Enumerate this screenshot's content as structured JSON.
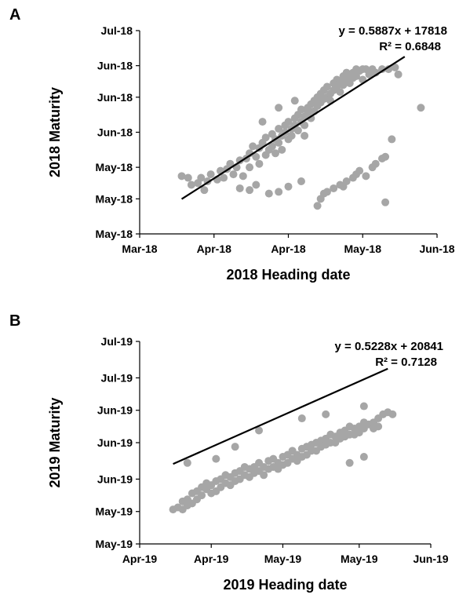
{
  "panels": [
    {
      "letter": "A"
    },
    {
      "letter": "B"
    }
  ],
  "chart_data": [
    {
      "type": "scatter",
      "panel": "A",
      "xlabel": "2018 Heading date",
      "ylabel": "2018 Maturity",
      "xlim": [
        43160,
        43252
      ],
      "ylim": [
        43224,
        43282
      ],
      "x_tick_values": [
        43160,
        43183,
        43206,
        43229,
        43252
      ],
      "x_tick_labels": [
        "Mar-18",
        "Apr-18",
        "Apr-18",
        "May-18",
        "Jun-18"
      ],
      "y_tick_values": [
        43224,
        43234,
        43243,
        43253,
        43263,
        43272,
        43282
      ],
      "y_tick_labels": [
        "May-18",
        "May-18",
        "May-18",
        "Jun-18",
        "Jun-18",
        "Jun-18",
        "Jul-18"
      ],
      "equation": "y = 0.5887x + 17818",
      "r2": "R² = 0.6848",
      "trend_x": [
        43173,
        43242
      ],
      "point_color": "#a6a6a6",
      "line_color": "#000000",
      "series": [
        {
          "values": [
            [
              43173,
              43240.5
            ],
            [
              43175,
              43240
            ],
            [
              43176,
              43238
            ],
            [
              43178,
              43238.5
            ],
            [
              43179,
              43240
            ],
            [
              43180,
              43236.5
            ],
            [
              43181,
              43239
            ],
            [
              43182,
              43241
            ],
            [
              43184,
              43239.5
            ],
            [
              43185,
              43242
            ],
            [
              43186,
              43240
            ],
            [
              43187,
              43242.5
            ],
            [
              43188,
              43244
            ],
            [
              43189,
              43241
            ],
            [
              43190,
              43243
            ],
            [
              43191,
              43245
            ],
            [
              43192,
              43240.5
            ],
            [
              43193,
              43245.5
            ],
            [
              43194,
              43247
            ],
            [
              43194,
              43243
            ],
            [
              43195,
              43249
            ],
            [
              43196,
              43246
            ],
            [
              43197,
              43244
            ],
            [
              43197,
              43248.5
            ],
            [
              43198,
              43250
            ],
            [
              43199,
              43246.5
            ],
            [
              43199,
              43251.5
            ],
            [
              43200,
              43248
            ],
            [
              43201,
              43252.5
            ],
            [
              43201,
              43249
            ],
            [
              43202,
              43247
            ],
            [
              43202,
              43251
            ],
            [
              43203,
              43254
            ],
            [
              43203,
              43250
            ],
            [
              43204,
              43252
            ],
            [
              43204,
              43248
            ],
            [
              43205,
              43255
            ],
            [
              43205,
              43253
            ],
            [
              43206,
              43251
            ],
            [
              43206,
              43256
            ],
            [
              43207,
              43254
            ],
            [
              43207,
              43252
            ],
            [
              43208,
              43257
            ],
            [
              43208,
              43255
            ],
            [
              43209,
              43253.5
            ],
            [
              43209,
              43258
            ],
            [
              43210,
              43256
            ],
            [
              43210,
              43259.5
            ],
            [
              43211,
              43257.5
            ],
            [
              43211,
              43255
            ],
            [
              43212,
              43260
            ],
            [
              43212,
              43258.5
            ],
            [
              43213,
              43261
            ],
            [
              43213,
              43257
            ],
            [
              43214,
              43262
            ],
            [
              43214,
              43259
            ],
            [
              43215,
              43263
            ],
            [
              43215,
              43260.5
            ],
            [
              43216,
              43261.5
            ],
            [
              43216,
              43264
            ],
            [
              43217,
              43262.5
            ],
            [
              43217,
              43265
            ],
            [
              43218,
              43263
            ],
            [
              43218,
              43266
            ],
            [
              43219,
              43264
            ],
            [
              43219,
              43262
            ],
            [
              43220,
              43267
            ],
            [
              43220,
              43265
            ],
            [
              43221,
              43266
            ],
            [
              43221,
              43268
            ],
            [
              43222,
              43264.5
            ],
            [
              43222,
              43267.5
            ],
            [
              43223,
              43269
            ],
            [
              43223,
              43266.5
            ],
            [
              43224,
              43268
            ],
            [
              43224,
              43270
            ],
            [
              43225,
              43267
            ],
            [
              43225,
              43269.5
            ],
            [
              43226,
              43270
            ],
            [
              43226,
              43268.5
            ],
            [
              43227,
              43271
            ],
            [
              43227,
              43269
            ],
            [
              43228,
              43270.5
            ],
            [
              43229,
              43271
            ],
            [
              43229,
              43268
            ],
            [
              43230,
              43271
            ],
            [
              43231,
              43269.5
            ],
            [
              43232,
              43271
            ],
            [
              43233,
              43270
            ],
            [
              43235,
              43271
            ],
            [
              43237,
              43271
            ],
            [
              43239,
              43271.5
            ],
            [
              43240,
              43269.5
            ],
            [
              43247,
              43260
            ],
            [
              43191,
              43237
            ],
            [
              43194,
              43236.5
            ],
            [
              43196,
              43238
            ],
            [
              43200,
              43235.5
            ],
            [
              43203,
              43236
            ],
            [
              43206,
              43237.5
            ],
            [
              43210,
              43239
            ],
            [
              43198,
              43256
            ],
            [
              43203,
              43260
            ],
            [
              43208,
              43262
            ],
            [
              43211,
              43252
            ],
            [
              43215,
              43232
            ],
            [
              43216,
              43234
            ],
            [
              43217,
              43235.5
            ],
            [
              43218,
              43236
            ],
            [
              43220,
              43237
            ],
            [
              43222,
              43238
            ],
            [
              43223,
              43237.5
            ],
            [
              43224,
              43239
            ],
            [
              43226,
              43240
            ],
            [
              43227,
              43241
            ],
            [
              43228,
              43242
            ],
            [
              43230,
              43240.5
            ],
            [
              43232,
              43243
            ],
            [
              43233,
              43244
            ],
            [
              43235,
              43245.5
            ],
            [
              43236,
              43246
            ],
            [
              43238,
              43251
            ],
            [
              43236,
              43233
            ]
          ]
        }
      ]
    },
    {
      "type": "scatter",
      "panel": "B",
      "xlabel": "2019 Heading date",
      "ylabel": "2019 Maturity",
      "xlim": [
        43556,
        43617
      ],
      "ylim": [
        43596,
        43646
      ],
      "x_tick_values": [
        43556,
        43571,
        43586,
        43602,
        43617
      ],
      "x_tick_labels": [
        "Apr-19",
        "Apr-19",
        "May-19",
        "May-19",
        "Jun-19"
      ],
      "y_tick_values": [
        43596,
        43604,
        43612,
        43621,
        43629,
        43637,
        43646
      ],
      "y_tick_labels": [
        "May-19",
        "May-19",
        "Jun-19",
        "Jun-19",
        "Jun-19",
        "Jul-19",
        "Jul-19"
      ],
      "equation": "y = 0.5228x + 20841",
      "r2": "R² = 0.7128",
      "trend_x": [
        43563,
        43608
      ],
      "point_color": "#a6a6a6",
      "line_color": "#000000",
      "series": [
        {
          "values": [
            [
              43563,
              43604.5
            ],
            [
              43564,
              43605
            ],
            [
              43565,
              43606.5
            ],
            [
              43565,
              43604.5
            ],
            [
              43566,
              43607
            ],
            [
              43566,
              43605.5
            ],
            [
              43567,
              43608.5
            ],
            [
              43567,
              43606
            ],
            [
              43568,
              43609
            ],
            [
              43568,
              43607
            ],
            [
              43569,
              43610
            ],
            [
              43569,
              43608
            ],
            [
              43570,
              43609.5
            ],
            [
              43570,
              43611
            ],
            [
              43571,
              43610.5
            ],
            [
              43571,
              43608.5
            ],
            [
              43572,
              43611.5
            ],
            [
              43572,
              43609
            ],
            [
              43573,
              43612
            ],
            [
              43573,
              43610
            ],
            [
              43574,
              43613
            ],
            [
              43574,
              43611
            ],
            [
              43575,
              43612.5
            ],
            [
              43575,
              43610.5
            ],
            [
              43576,
              43613.5
            ],
            [
              43576,
              43611.5
            ],
            [
              43577,
              43614
            ],
            [
              43577,
              43612
            ],
            [
              43578,
              43613
            ],
            [
              43578,
              43615
            ],
            [
              43579,
              43614.5
            ],
            [
              43579,
              43612.5
            ],
            [
              43580,
              43615
            ],
            [
              43580,
              43613.5
            ],
            [
              43581,
              43616
            ],
            [
              43581,
              43614
            ],
            [
              43582,
              43615
            ],
            [
              43582,
              43613
            ],
            [
              43583,
              43616.5
            ],
            [
              43583,
              43614.5
            ],
            [
              43584,
              43617
            ],
            [
              43584,
              43615
            ],
            [
              43585,
              43616
            ],
            [
              43585,
              43614.5
            ],
            [
              43586,
              43617.5
            ],
            [
              43586,
              43615.5
            ],
            [
              43587,
              43618
            ],
            [
              43587,
              43616
            ],
            [
              43588,
              43617
            ],
            [
              43588,
              43619
            ],
            [
              43589,
              43618
            ],
            [
              43589,
              43616.5
            ],
            [
              43590,
              43619.5
            ],
            [
              43590,
              43617.5
            ],
            [
              43591,
              43620
            ],
            [
              43591,
              43618
            ],
            [
              43592,
              43619
            ],
            [
              43592,
              43620.5
            ],
            [
              43593,
              43621
            ],
            [
              43593,
              43619
            ],
            [
              43594,
              43620
            ],
            [
              43594,
              43621.5
            ],
            [
              43595,
              43622
            ],
            [
              43595,
              43620.5
            ],
            [
              43596,
              43621
            ],
            [
              43596,
              43623
            ],
            [
              43597,
              43622.5
            ],
            [
              43597,
              43621
            ],
            [
              43598,
              43623.5
            ],
            [
              43598,
              43622
            ],
            [
              43599,
              43624
            ],
            [
              43599,
              43622.5
            ],
            [
              43600,
              43623
            ],
            [
              43600,
              43625
            ],
            [
              43601,
              43624.5
            ],
            [
              43601,
              43623
            ],
            [
              43602,
              43625
            ],
            [
              43602,
              43623.5
            ],
            [
              43603,
              43626
            ],
            [
              43603,
              43624.5
            ],
            [
              43604,
              43625.5
            ],
            [
              43605,
              43626
            ],
            [
              43605,
              43624.5
            ],
            [
              43606,
              43627
            ],
            [
              43606,
              43625
            ],
            [
              43607,
              43628
            ],
            [
              43608,
              43628.5
            ],
            [
              43609,
              43628
            ],
            [
              43566,
              43616
            ],
            [
              43572,
              43617
            ],
            [
              43576,
              43620
            ],
            [
              43581,
              43624
            ],
            [
              43590,
              43627
            ],
            [
              43595,
              43628
            ],
            [
              43603,
              43630
            ],
            [
              43600,
              43616
            ],
            [
              43603,
              43617.5
            ]
          ]
        }
      ]
    }
  ]
}
